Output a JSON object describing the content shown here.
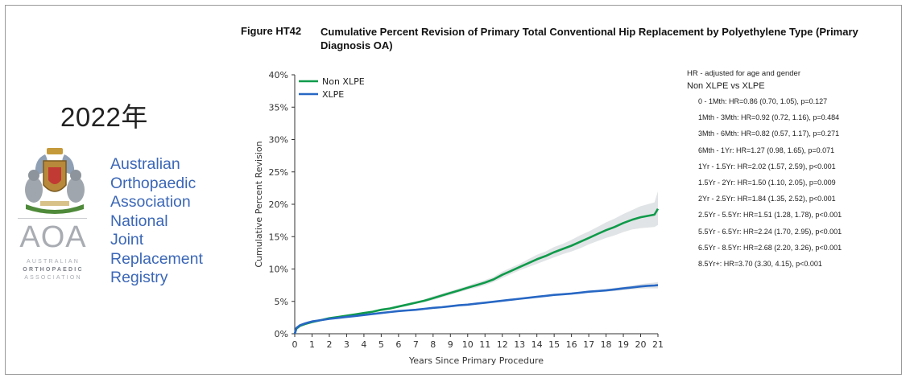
{
  "sidebar": {
    "year": "2022年",
    "logo_letters": "AOA",
    "logo_small_lines": [
      "AUSTRALIAN",
      "ORTHOPAEDIC",
      "ASSOCIATION"
    ],
    "registry_lines": [
      "Australian",
      "Orthopaedic",
      "Association",
      "National",
      "Joint",
      "Replacement",
      "Registry"
    ],
    "crest_icon": "coat-of-arms-icon"
  },
  "figure": {
    "label": "Figure HT42",
    "title": "Cumulative Percent Revision of Primary Total Conventional Hip Replacement by Polyethylene Type (Primary Diagnosis OA)"
  },
  "hr_panel": {
    "note": "HR - adjusted for age and gender",
    "comparison": "Non XLPE vs XLPE",
    "rows": [
      "0 - 1Mth: HR=0.86 (0.70, 1.05), p=0.127",
      "1Mth - 3Mth: HR=0.92 (0.72, 1.16), p=0.484",
      "3Mth - 6Mth: HR=0.82 (0.57, 1.17), p=0.271",
      "6Mth - 1Yr: HR=1.27 (0.98, 1.65), p=0.071",
      "1Yr - 1.5Yr: HR=2.02 (1.57, 2.59), p<0.001",
      "1.5Yr - 2Yr: HR=1.50 (1.10, 2.05), p=0.009",
      "2Yr - 2.5Yr: HR=1.84 (1.35, 2.52), p<0.001",
      "2.5Yr - 5.5Yr: HR=1.51 (1.28, 1.78), p<0.001",
      "5.5Yr - 6.5Yr: HR=2.24 (1.70, 2.95), p<0.001",
      "6.5Yr - 8.5Yr: HR=2.68 (2.20, 3.26), p<0.001",
      "8.5Yr+: HR=3.70 (3.30, 4.15), p<0.001"
    ]
  },
  "chart_data": {
    "type": "line",
    "title": "Cumulative Percent Revision of Primary Total Conventional Hip Replacement by Polyethylene Type (Primary Diagnosis OA)",
    "xlabel": "Years Since Primary Procedure",
    "ylabel": "Cumulative Percent Revision",
    "xlim": [
      0,
      21
    ],
    "ylim": [
      0,
      40
    ],
    "x_ticks": [
      0,
      1,
      2,
      3,
      4,
      5,
      6,
      7,
      8,
      9,
      10,
      11,
      12,
      13,
      14,
      15,
      16,
      17,
      18,
      19,
      20,
      21
    ],
    "y_ticks": [
      0,
      5,
      10,
      15,
      20,
      25,
      30,
      35,
      40
    ],
    "y_tick_labels": [
      "0%",
      "5%",
      "10%",
      "15%",
      "20%",
      "25%",
      "30%",
      "35%",
      "40%"
    ],
    "grid": false,
    "legend_position": "top-left",
    "confidence_band": true,
    "series": [
      {
        "name": "Non XLPE",
        "color": "#0f9a4a",
        "x": [
          0,
          0.1,
          0.3,
          0.6,
          1,
          1.5,
          2,
          2.5,
          3,
          3.5,
          4,
          4.5,
          5,
          5.5,
          6,
          6.5,
          7,
          7.5,
          8,
          8.5,
          9,
          9.5,
          10,
          10.5,
          11,
          11.5,
          12,
          12.5,
          13,
          13.5,
          14,
          14.5,
          15,
          15.5,
          16,
          16.5,
          17,
          17.5,
          18,
          18.5,
          19,
          19.5,
          20,
          20.4,
          20.8,
          21
        ],
        "y": [
          0,
          0.8,
          1.2,
          1.5,
          1.8,
          2.1,
          2.4,
          2.6,
          2.8,
          3.0,
          3.2,
          3.4,
          3.7,
          3.9,
          4.2,
          4.5,
          4.8,
          5.1,
          5.5,
          5.9,
          6.3,
          6.7,
          7.1,
          7.5,
          7.9,
          8.4,
          9.1,
          9.7,
          10.3,
          10.9,
          11.5,
          12.0,
          12.6,
          13.1,
          13.6,
          14.2,
          14.8,
          15.4,
          16.0,
          16.5,
          17.1,
          17.6,
          18.0,
          18.2,
          18.4,
          19.3
        ],
        "ci_lower": [
          0,
          0.7,
          1.1,
          1.4,
          1.7,
          2.0,
          2.3,
          2.5,
          2.7,
          2.9,
          3.1,
          3.3,
          3.5,
          3.7,
          4.0,
          4.3,
          4.6,
          4.9,
          5.2,
          5.6,
          6.0,
          6.4,
          6.8,
          7.1,
          7.5,
          8.0,
          8.6,
          9.2,
          9.8,
          10.3,
          10.8,
          11.3,
          11.8,
          12.3,
          12.7,
          13.2,
          13.8,
          14.3,
          14.8,
          15.2,
          15.7,
          16.1,
          16.3,
          16.4,
          16.5,
          16.8
        ],
        "ci_upper": [
          0,
          0.9,
          1.3,
          1.6,
          1.9,
          2.2,
          2.5,
          2.7,
          2.9,
          3.1,
          3.3,
          3.5,
          3.9,
          4.1,
          4.4,
          4.7,
          5.0,
          5.3,
          5.8,
          6.2,
          6.6,
          7.0,
          7.4,
          7.9,
          8.3,
          8.8,
          9.6,
          10.2,
          10.8,
          11.5,
          12.2,
          12.7,
          13.4,
          13.9,
          14.5,
          15.2,
          15.8,
          16.5,
          17.2,
          17.8,
          18.5,
          19.1,
          19.7,
          20.0,
          20.3,
          22.0
        ]
      },
      {
        "name": "XLPE",
        "color": "#2767c4",
        "x": [
          0,
          0.1,
          0.3,
          0.6,
          1,
          1.5,
          2,
          2.5,
          3,
          3.5,
          4,
          4.5,
          5,
          5.5,
          6,
          6.5,
          7,
          7.5,
          8,
          8.5,
          9,
          9.5,
          10,
          10.5,
          11,
          11.5,
          12,
          12.5,
          13,
          13.5,
          14,
          14.5,
          15,
          15.5,
          16,
          16.5,
          17,
          17.5,
          18,
          18.5,
          19,
          19.5,
          20,
          20.4,
          20.8,
          21
        ],
        "y": [
          0,
          0.9,
          1.3,
          1.6,
          1.9,
          2.1,
          2.3,
          2.45,
          2.6,
          2.75,
          2.9,
          3.05,
          3.2,
          3.35,
          3.5,
          3.6,
          3.7,
          3.85,
          4.0,
          4.1,
          4.25,
          4.4,
          4.5,
          4.65,
          4.8,
          4.95,
          5.1,
          5.25,
          5.4,
          5.55,
          5.7,
          5.85,
          6.0,
          6.1,
          6.2,
          6.35,
          6.5,
          6.6,
          6.7,
          6.85,
          7.0,
          7.15,
          7.3,
          7.4,
          7.45,
          7.5
        ],
        "ci_lower": [
          0,
          0.85,
          1.25,
          1.55,
          1.85,
          2.05,
          2.25,
          2.4,
          2.55,
          2.7,
          2.85,
          3.0,
          3.15,
          3.3,
          3.45,
          3.55,
          3.65,
          3.8,
          3.95,
          4.05,
          4.2,
          4.35,
          4.45,
          4.6,
          4.75,
          4.9,
          5.05,
          5.2,
          5.35,
          5.5,
          5.6,
          5.75,
          5.9,
          6.0,
          6.1,
          6.2,
          6.35,
          6.45,
          6.5,
          6.6,
          6.75,
          6.85,
          6.95,
          7.0,
          7.0,
          7.0
        ],
        "ci_upper": [
          0,
          0.95,
          1.35,
          1.65,
          1.95,
          2.15,
          2.35,
          2.5,
          2.65,
          2.8,
          2.95,
          3.1,
          3.25,
          3.4,
          3.55,
          3.65,
          3.75,
          3.9,
          4.05,
          4.15,
          4.3,
          4.45,
          4.55,
          4.7,
          4.85,
          5.0,
          5.15,
          5.3,
          5.45,
          5.6,
          5.8,
          5.95,
          6.1,
          6.2,
          6.3,
          6.5,
          6.65,
          6.75,
          6.9,
          7.1,
          7.25,
          7.45,
          7.65,
          7.8,
          7.9,
          8.0
        ]
      }
    ]
  }
}
